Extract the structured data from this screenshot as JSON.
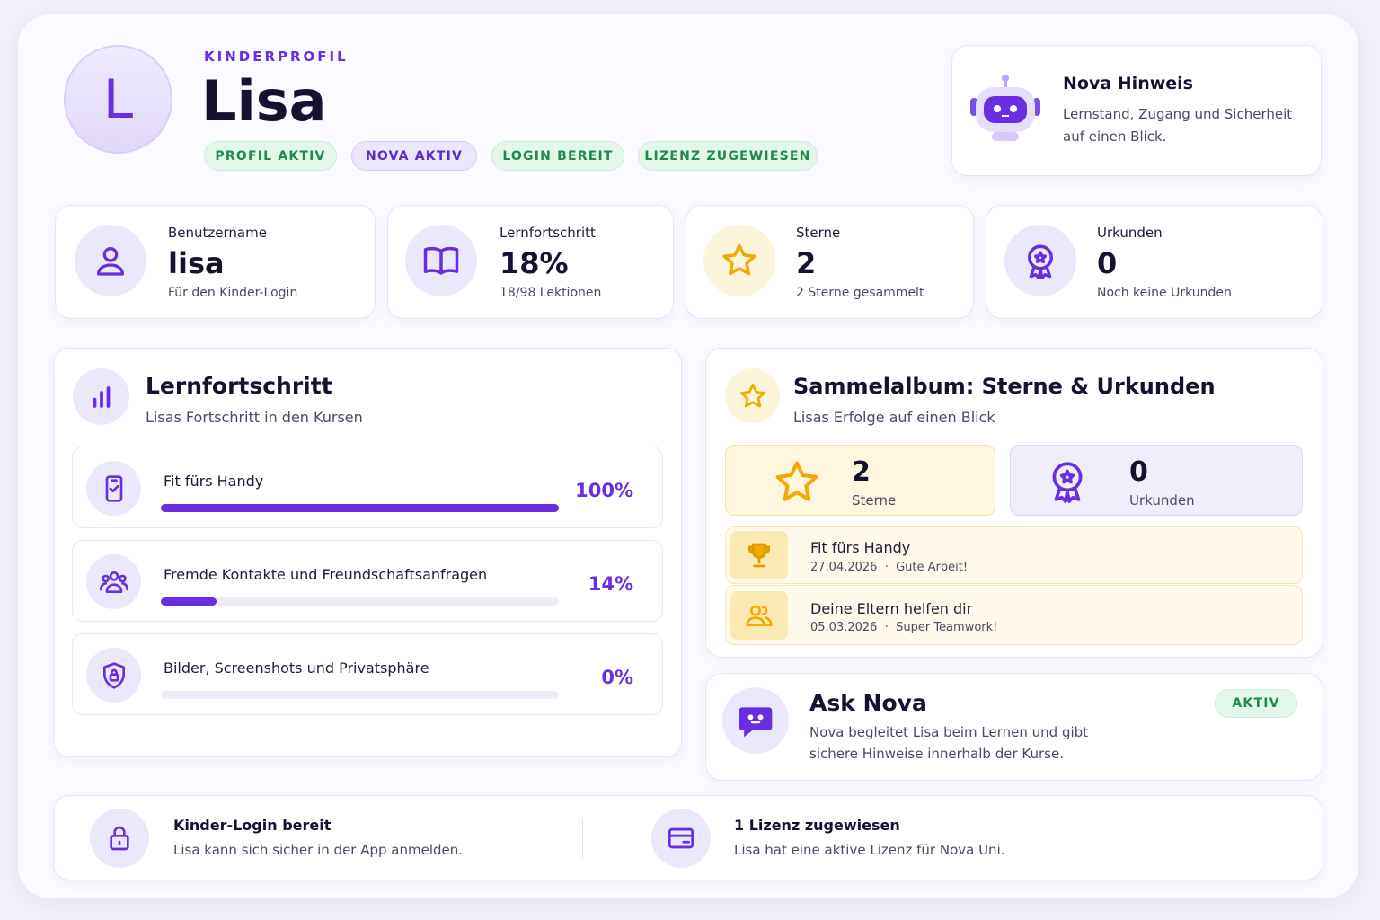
{
  "header": {
    "avatar_letter": "L",
    "eyebrow": "KINDERPROFIL",
    "name": "Lisa",
    "badges": [
      "PROFIL AKTIV",
      "NOVA AKTIV",
      "LOGIN BEREIT",
      "LIZENZ ZUGEWIESEN"
    ]
  },
  "hint": {
    "title": "Nova Hinweis",
    "text": "Lernstand, Zugang und Sicherheit auf einen Blick."
  },
  "stats": [
    {
      "label": "Benutzername",
      "value": "lisa",
      "note": "Für den Kinder-Login"
    },
    {
      "label": "Lernfortschritt",
      "value": "18%",
      "note": "18/98 Lektionen"
    },
    {
      "label": "Sterne",
      "value": "2",
      "note": "2 Sterne gesammelt"
    },
    {
      "label": "Urkunden",
      "value": "0",
      "note": "Noch keine Urkunden"
    }
  ],
  "progress": {
    "title": "Lernfortschritt",
    "subtitle": "Lisas Fortschritt in den Kursen",
    "courses": [
      {
        "name": "Fit fürs Handy",
        "progress": 100,
        "progress_label": "100%"
      },
      {
        "name": "Fremde Kontakte und Freundschaftsanfragen",
        "progress": 14,
        "progress_label": "14%"
      },
      {
        "name": "Bilder, Screenshots und Privatsphäre",
        "progress": 0,
        "progress_label": "0%"
      }
    ]
  },
  "album": {
    "title": "Sammelalbum: Sterne & Urkunden",
    "subtitle": "Lisas Erfolge auf einen Blick",
    "summary": [
      {
        "value": "2",
        "label": "Sterne"
      },
      {
        "value": "0",
        "label": "Urkunden"
      }
    ],
    "achievements": [
      {
        "title": "Fit fürs Handy",
        "date": "27.04.2026",
        "note": "Gute Arbeit!"
      },
      {
        "title": "Deine Eltern helfen dir",
        "date": "05.03.2026",
        "note": "Super Teamwork!"
      }
    ]
  },
  "ask_nova": {
    "title": "Ask Nova",
    "status": "AKTIV",
    "text": "Nova begleitet Lisa beim Lernen und gibt sichere Hinweise innerhalb der Kurse."
  },
  "footer": [
    {
      "title": "Kinder-Login bereit",
      "text": "Lisa kann sich sicher in der App anmelden."
    },
    {
      "title": "1 Lizenz zugewiesen",
      "text": "Lisa hat eine aktive Lizenz für Nova Uni."
    }
  ]
}
